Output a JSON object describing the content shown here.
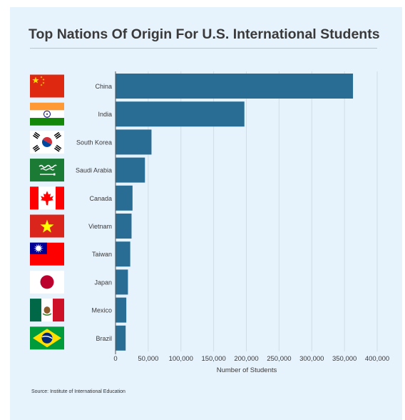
{
  "header": {
    "title": "Top Nations Of Origin For U.S. International Students"
  },
  "footer": {
    "source": "Source: Institute of International Education"
  },
  "colors": {
    "background": "#e6f2fc",
    "bar": "#2a6d94",
    "grid": "#cfdde8",
    "text": "#3a3a3a"
  },
  "chart_data": {
    "type": "bar",
    "orientation": "horizontal",
    "title": "Top Nations Of Origin For U.S. International Students",
    "xlabel": "Number of Students",
    "ylabel": "",
    "categories": [
      "China",
      "India",
      "South Korea",
      "Saudi Arabia",
      "Canada",
      "Vietnam",
      "Taiwan",
      "Japan",
      "Mexico",
      "Brazil"
    ],
    "values": [
      363000,
      197000,
      55000,
      45000,
      26000,
      24500,
      22500,
      19000,
      16500,
      15500
    ],
    "xlim": [
      0,
      400000
    ],
    "xticks": [
      0,
      50000,
      100000,
      150000,
      200000,
      250000,
      300000,
      350000,
      400000
    ],
    "xtick_labels": [
      "0",
      "50,000",
      "100,000",
      "150,000",
      "200,000",
      "250,000",
      "300,000",
      "350,000",
      "400,000"
    ],
    "grid": true,
    "legend": "none",
    "flags": [
      "china-flag-icon",
      "india-flag-icon",
      "south-korea-flag-icon",
      "saudi-arabia-flag-icon",
      "canada-flag-icon",
      "vietnam-flag-icon",
      "taiwan-flag-icon",
      "japan-flag-icon",
      "mexico-flag-icon",
      "brazil-flag-icon"
    ]
  }
}
